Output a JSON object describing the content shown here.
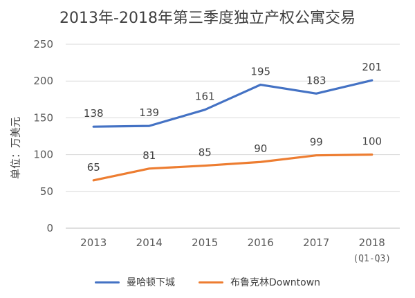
{
  "chart_data": {
    "type": "line",
    "title": "2013年-2018年第三季度独立产权公寓交易",
    "ylabel": "单位：万美元",
    "xlabel": "",
    "categories": [
      "2013",
      "2014",
      "2015",
      "2016",
      "2017",
      "2018"
    ],
    "category_sublabels": [
      "",
      "",
      "",
      "",
      "",
      "(Q1-Q3)"
    ],
    "ylim": [
      0,
      250
    ],
    "yticks": [
      0,
      50,
      100,
      150,
      200,
      250
    ],
    "grid": true,
    "legend_position": "bottom",
    "series": [
      {
        "name": "曼哈顿下城",
        "color": "#4472C4",
        "values": [
          138,
          139,
          161,
          195,
          183,
          201
        ]
      },
      {
        "name": "布鲁克林Downtown",
        "color": "#ED7D31",
        "values": [
          65,
          81,
          85,
          90,
          99,
          100
        ]
      }
    ]
  }
}
